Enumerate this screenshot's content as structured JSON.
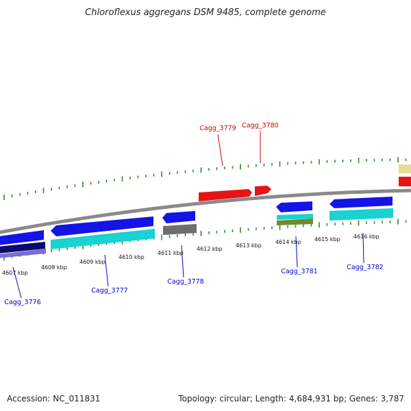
{
  "title": "Chloroflexus aggregans DSM 9485, complete genome",
  "accession": "Accession: NC_011831",
  "summary": "Topology: circular; Length: 4,684,931 bp; Genes: 3,787",
  "colors": {
    "backbone": "#8a8a8a",
    "tick": "#2f8a2f",
    "blue": "#1414e6",
    "cyan": "#19d2d2",
    "red": "#e61414",
    "gray": "#6e6e6e",
    "navy": "#0a0a6e",
    "violet": "#7a6ed2",
    "olive": "#6e8c28",
    "khaki": "#e6dc96",
    "label_forward": "#cc0000",
    "label_reverse": "#0000cc"
  },
  "scale_labels": [
    "4607 kbp",
    "4608 kbp",
    "4609 kbp",
    "4610 kbp",
    "4611 kbp",
    "4612 kbp",
    "4613 kbp",
    "4614 kbp",
    "4615 kbp",
    "4616 kbp"
  ],
  "gene_labels_forward": [
    "Cagg_3779",
    "Cagg_3780"
  ],
  "gene_labels_reverse": [
    "Cagg_3776",
    "Cagg_3777",
    "Cagg_3778",
    "Cagg_3781",
    "Cagg_3782"
  ]
}
